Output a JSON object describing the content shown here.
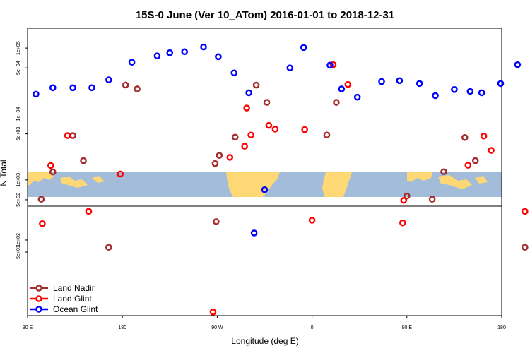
{
  "chart_data": {
    "type": "scatter",
    "title": "15S-0 June (Ver 10_ATom)   2016-01-01 to 2018-12-31",
    "xlabel": "Longitude (deg E)",
    "ylabel": "N Total",
    "x_ticks": [
      {
        "value": 90,
        "label": "90 E"
      },
      {
        "value": 180,
        "label": "180"
      },
      {
        "value": 270,
        "label": "90 W"
      },
      {
        "value": 360,
        "label": "0"
      },
      {
        "value": 450,
        "label": "90 E"
      },
      {
        "value": 540,
        "label": "180"
      }
    ],
    "xlim": [
      90,
      540
    ],
    "upper_panel": {
      "scale": "log",
      "ylim": [
        400,
        200000
      ],
      "y_ticks": [
        {
          "value": 500,
          "label": "5e+02"
        },
        {
          "value": 1000,
          "label": "1e+03"
        },
        {
          "value": 5000,
          "label": "5e+03"
        },
        {
          "value": 10000,
          "label": "1e+04"
        },
        {
          "value": 50000,
          "label": "5e+04"
        },
        {
          "value": 100000,
          "label": "1e+05"
        }
      ],
      "background": "world map strip (land in tan, ocean in blue-grey)",
      "series": [
        {
          "name": "Land Nadir",
          "color": "#a52a2a",
          "points": [
            [
              103,
              510
            ],
            [
              114,
              1320
            ],
            [
              143,
              1960
            ],
            [
              133,
              4700
            ],
            [
              183,
              27500
            ],
            [
              194,
              24000
            ],
            [
              268,
              1770
            ],
            [
              272,
              2350
            ],
            [
              287,
              4450
            ],
            [
              307,
              27400
            ],
            [
              317,
              15000
            ],
            [
              374,
              4800
            ],
            [
              383,
              15000
            ],
            [
              450,
              570
            ],
            [
              474,
              510
            ],
            [
              485,
              1330
            ],
            [
              505,
              4400
            ],
            [
              515,
              1960
            ]
          ]
        },
        {
          "name": "Land Glint",
          "color": "#ff0000",
          "points": [
            [
              112,
              1650
            ],
            [
              128,
              4700
            ],
            [
              178,
              1230
            ],
            [
              282,
              2200
            ],
            [
              296,
              3250
            ],
            [
              298,
              12300
            ],
            [
              302,
              4800
            ],
            [
              319,
              6700
            ],
            [
              325,
              5900
            ],
            [
              353,
              5800
            ],
            [
              380,
              56000
            ],
            [
              394,
              28000
            ],
            [
              447,
              490
            ],
            [
              508,
              1670
            ],
            [
              523,
              4620
            ],
            [
              530,
              2800
            ]
          ]
        },
        {
          "name": "Ocean Glint",
          "color": "#0000ff",
          "points": [
            [
              98,
              20000
            ],
            [
              114,
              25000
            ],
            [
              133,
              25000
            ],
            [
              151,
              25000
            ],
            [
              167,
              33000
            ],
            [
              189,
              61000
            ],
            [
              213,
              76000
            ],
            [
              225,
              85000
            ],
            [
              239,
              88000
            ],
            [
              257,
              104000
            ],
            [
              271,
              74000
            ],
            [
              286,
              42000
            ],
            [
              300,
              21000
            ],
            [
              315,
              710
            ],
            [
              339,
              50000
            ],
            [
              352,
              102000
            ],
            [
              377,
              55000
            ],
            [
              388,
              24000
            ],
            [
              403,
              18000
            ],
            [
              426,
              31000
            ],
            [
              443,
              32000
            ],
            [
              462,
              29000
            ],
            [
              477,
              19000
            ],
            [
              495,
              23500
            ],
            [
              510,
              22000
            ],
            [
              521,
              21000
            ],
            [
              539,
              29000
            ],
            [
              555,
              56000
            ]
          ]
        }
      ]
    },
    "lower_panel": {
      "scale": "log",
      "ylim": [
        1.3,
        700
      ],
      "y_ticks": [
        {
          "value": 50,
          "label": "5e+01"
        },
        {
          "value": 100,
          "label": "1e+02"
        }
      ],
      "series": [
        {
          "name": "Land Nadir",
          "color": "#a52a2a",
          "points": [
            [
              167,
              66
            ],
            [
              269,
              288
            ],
            [
              562,
              66
            ]
          ]
        },
        {
          "name": "Land Glint",
          "color": "#ff0000",
          "points": [
            [
              104,
              256
            ],
            [
              148,
              520
            ],
            [
              266,
              1.6
            ],
            [
              360,
              312
            ],
            [
              446,
              268
            ],
            [
              562,
              520
            ]
          ]
        },
        {
          "name": "Ocean Glint",
          "color": "#0000ff",
          "points": [
            [
              305,
              150
            ]
          ]
        }
      ]
    },
    "legend": {
      "position": "bottom-left",
      "entries": [
        {
          "label": "Land Nadir",
          "color": "#a52a2a"
        },
        {
          "label": "Land Glint",
          "color": "#ff0000"
        },
        {
          "label": "Ocean Glint",
          "color": "#0000ff"
        }
      ]
    },
    "colors": {
      "ocean": "#a3bcd9",
      "land": "#fed874"
    }
  }
}
